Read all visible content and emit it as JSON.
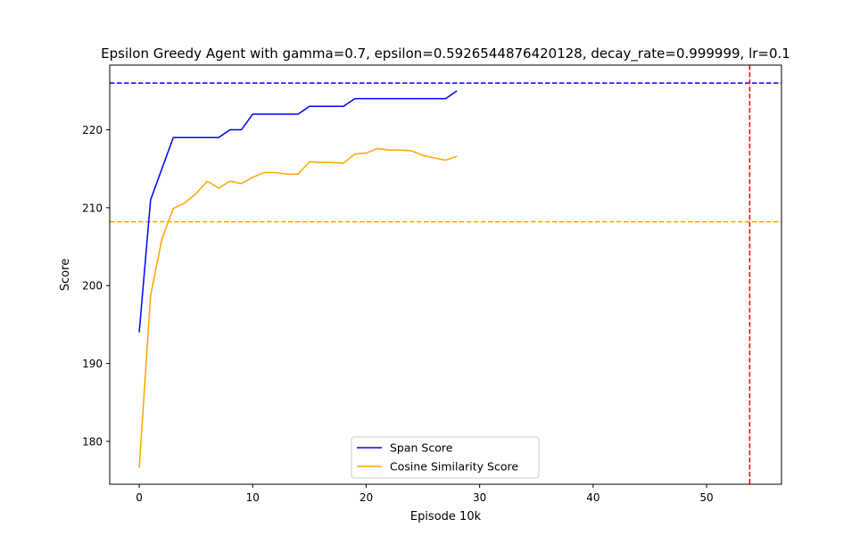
{
  "chart_data": {
    "type": "line",
    "title": "Epsilon Greedy Agent with gamma=0.7, epsilon=0.5926544876420128, decay_rate=0.999999, lr=0.1",
    "xlabel": "Episode 10k",
    "ylabel": "Score",
    "xlim": [
      -2.6,
      56.6
    ],
    "ylim": [
      174.5,
      228.3
    ],
    "xticks": [
      0,
      10,
      20,
      30,
      40,
      50
    ],
    "yticks": [
      180,
      190,
      200,
      210,
      220
    ],
    "grid": false,
    "legend_position": "bottom-center",
    "series": [
      {
        "name": "Span Score",
        "color": "#0000ff",
        "x": [
          0,
          1,
          2,
          3,
          4,
          5,
          6,
          7,
          8,
          9,
          10,
          11,
          12,
          13,
          14,
          15,
          16,
          17,
          18,
          19,
          20,
          21,
          22,
          23,
          24,
          25,
          26,
          27,
          28
        ],
        "y": [
          194,
          211,
          215,
          219,
          219,
          219,
          219,
          219,
          220,
          220,
          222,
          222,
          222,
          222,
          222,
          223,
          223,
          223,
          223,
          224,
          224,
          224,
          224,
          224,
          224,
          224,
          224,
          224,
          225
        ]
      },
      {
        "name": "Cosine Similarity Score",
        "color": "#ffa500",
        "x": [
          0,
          1,
          2,
          3,
          4,
          5,
          6,
          7,
          8,
          9,
          10,
          11,
          12,
          13,
          14,
          15,
          16,
          17,
          18,
          19,
          20,
          21,
          22,
          23,
          24,
          25,
          26,
          27,
          28
        ],
        "y": [
          176.6,
          198.7,
          206.0,
          209.9,
          210.6,
          211.8,
          213.4,
          212.5,
          213.4,
          213.1,
          213.9,
          214.5,
          214.5,
          214.3,
          214.3,
          215.9,
          215.8,
          215.8,
          215.7,
          216.9,
          217.0,
          217.6,
          217.4,
          217.4,
          217.3,
          216.7,
          216.4,
          216.1,
          216.6
        ]
      }
    ],
    "reference_lines": [
      {
        "orientation": "horizontal",
        "value": 226.0,
        "color": "#0000ff",
        "style": "dashed"
      },
      {
        "orientation": "horizontal",
        "value": 208.2,
        "color": "#ffa500",
        "style": "dashed"
      },
      {
        "orientation": "vertical",
        "value": 53.8,
        "color": "#ff0000",
        "style": "dashed"
      }
    ]
  }
}
